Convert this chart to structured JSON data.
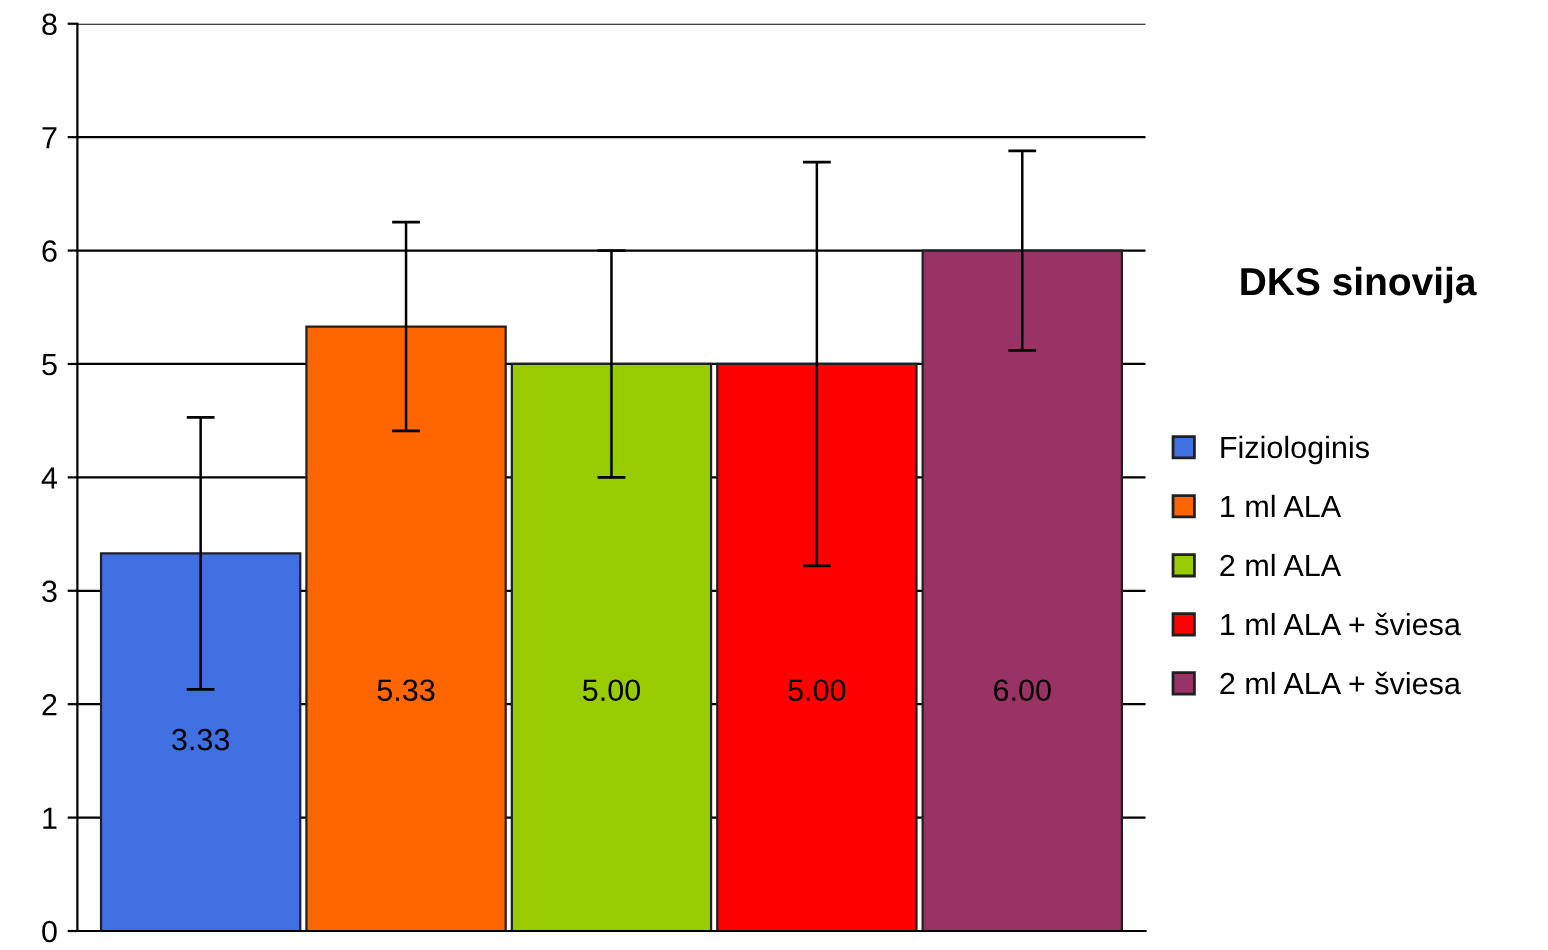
{
  "chart_data": {
    "type": "bar",
    "title": "DKS sinovija",
    "categories": [
      null,
      null,
      null,
      null,
      null
    ],
    "series": [
      {
        "name": "Fiziologinis",
        "color": "#3f6fe0",
        "values": [
          3.33,
          null,
          null,
          null,
          null
        ],
        "value_labels": [
          "3.33",
          null,
          null,
          null,
          null
        ],
        "errors": [
          1.2,
          null,
          null,
          null,
          null
        ]
      },
      {
        "name": "1 ml ALA",
        "color": "#ff6600",
        "values": [
          null,
          5.33,
          null,
          null,
          null
        ],
        "value_labels": [
          null,
          "5.33",
          null,
          null,
          null
        ],
        "errors": [
          null,
          0.92,
          null,
          null,
          null
        ]
      },
      {
        "name": "2 ml ALA",
        "color": "#99cc00",
        "values": [
          null,
          null,
          5.0,
          null,
          null
        ],
        "value_labels": [
          null,
          null,
          "5.00",
          null,
          null
        ],
        "errors": [
          null,
          null,
          1.0,
          null,
          null
        ]
      },
      {
        "name": "1 ml ALA + šviesa",
        "color": "#ff0000",
        "values": [
          null,
          null,
          null,
          5.0,
          null
        ],
        "value_labels": [
          null,
          null,
          null,
          "5.00",
          null
        ],
        "errors": [
          null,
          null,
          null,
          1.78,
          null
        ]
      },
      {
        "name": "2 ml ALA + šviesa",
        "color": "#993366",
        "values": [
          null,
          null,
          null,
          null,
          6.0
        ],
        "value_labels": [
          null,
          null,
          null,
          null,
          "6.00"
        ],
        "errors": [
          null,
          null,
          null,
          null,
          0.88
        ]
      }
    ],
    "ylim": [
      0,
      8
    ],
    "yticks": [
      0,
      1,
      2,
      3,
      4,
      5,
      6,
      7,
      8
    ],
    "grid": "y",
    "legend": "right"
  }
}
